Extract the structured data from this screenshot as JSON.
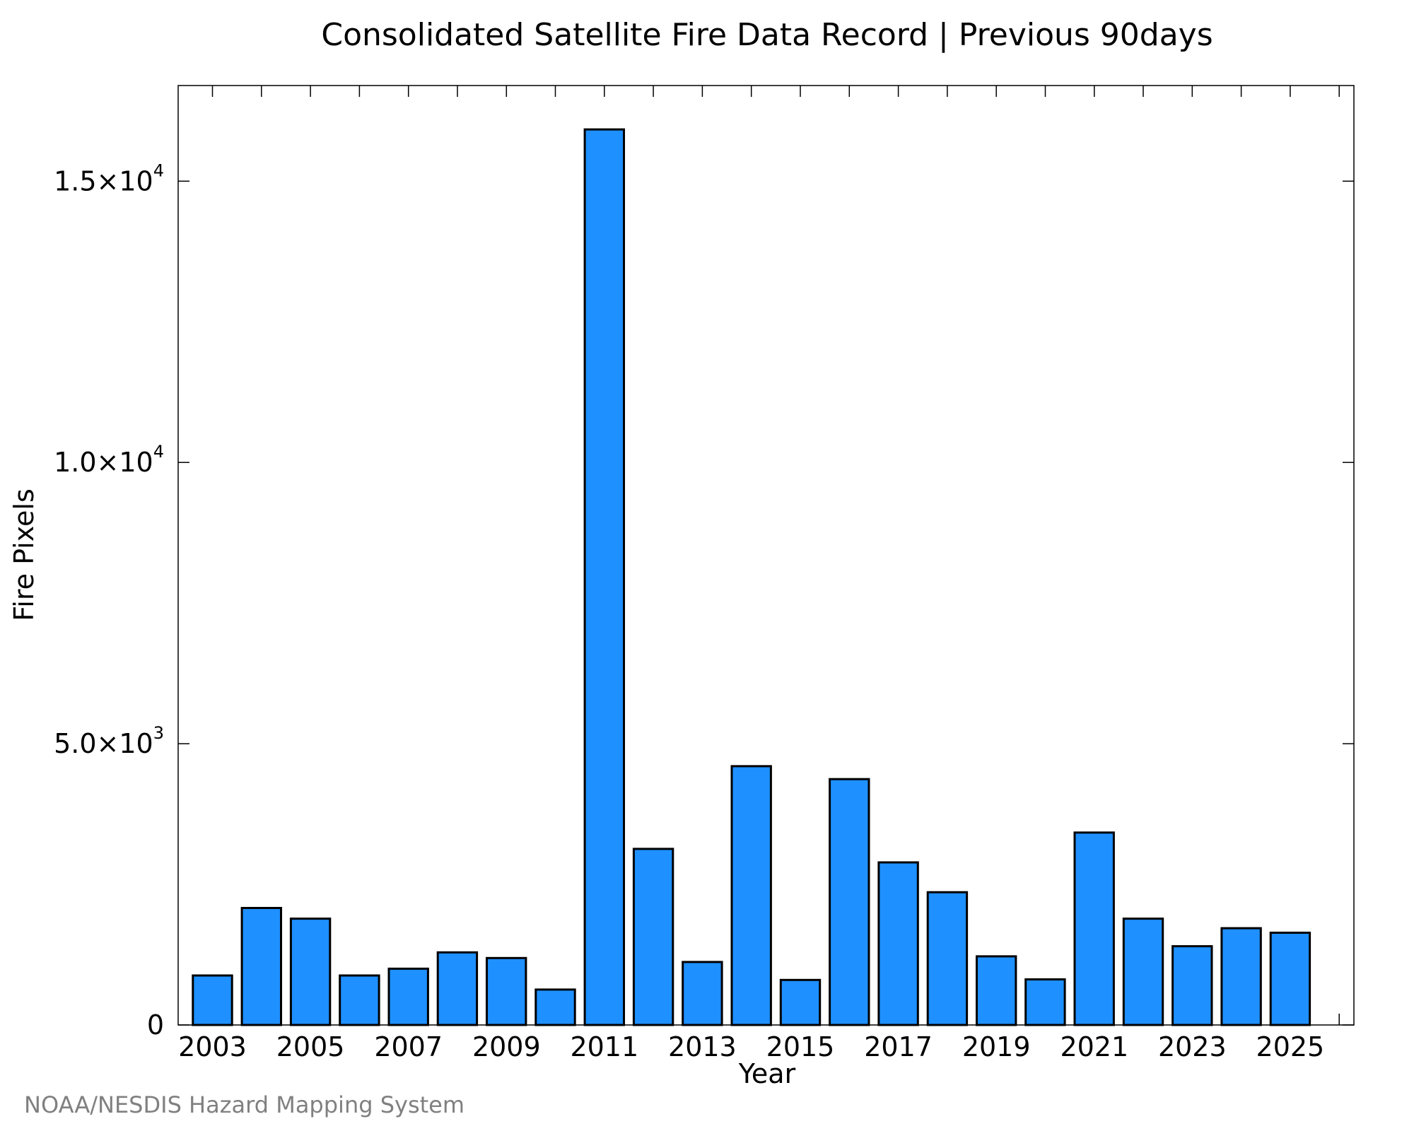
{
  "chart_data": {
    "type": "bar",
    "title": "Consolidated Satellite Fire Data Record | Previous 90days",
    "xlabel": "Year",
    "ylabel": "Fire Pixels",
    "categories": [
      "2003",
      "2004",
      "2005",
      "2006",
      "2007",
      "2008",
      "2009",
      "2010",
      "2011",
      "2012",
      "2013",
      "2014",
      "2015",
      "2016",
      "2017",
      "2018",
      "2019",
      "2020",
      "2021",
      "2022",
      "2023",
      "2024",
      "2025"
    ],
    "values": [
      880,
      2080,
      1890,
      880,
      1000,
      1290,
      1190,
      630,
      15920,
      3130,
      1120,
      4600,
      800,
      4370,
      2890,
      2360,
      1220,
      810,
      3420,
      1890,
      1400,
      1720,
      1640
    ],
    "x_tick_labels": [
      "2003",
      "2005",
      "2007",
      "2009",
      "2011",
      "2013",
      "2015",
      "2017",
      "2019",
      "2021",
      "2023",
      "2025"
    ],
    "y_ticks": [
      {
        "value": 0,
        "mantissa": "0",
        "exponent": ""
      },
      {
        "value": 5000,
        "mantissa": "5.0×10",
        "exponent": "3"
      },
      {
        "value": 10000,
        "mantissa": "1.0×10",
        "exponent": "4"
      },
      {
        "value": 15000,
        "mantissa": "1.5×10",
        "exponent": "4"
      }
    ],
    "ylim": [
      0,
      16700
    ],
    "grid": false,
    "legend": "none",
    "bar_color": "#1E90FF",
    "bar_edge_color": "#000000"
  },
  "credit": "NOAA/NESDIS Hazard Mapping System"
}
